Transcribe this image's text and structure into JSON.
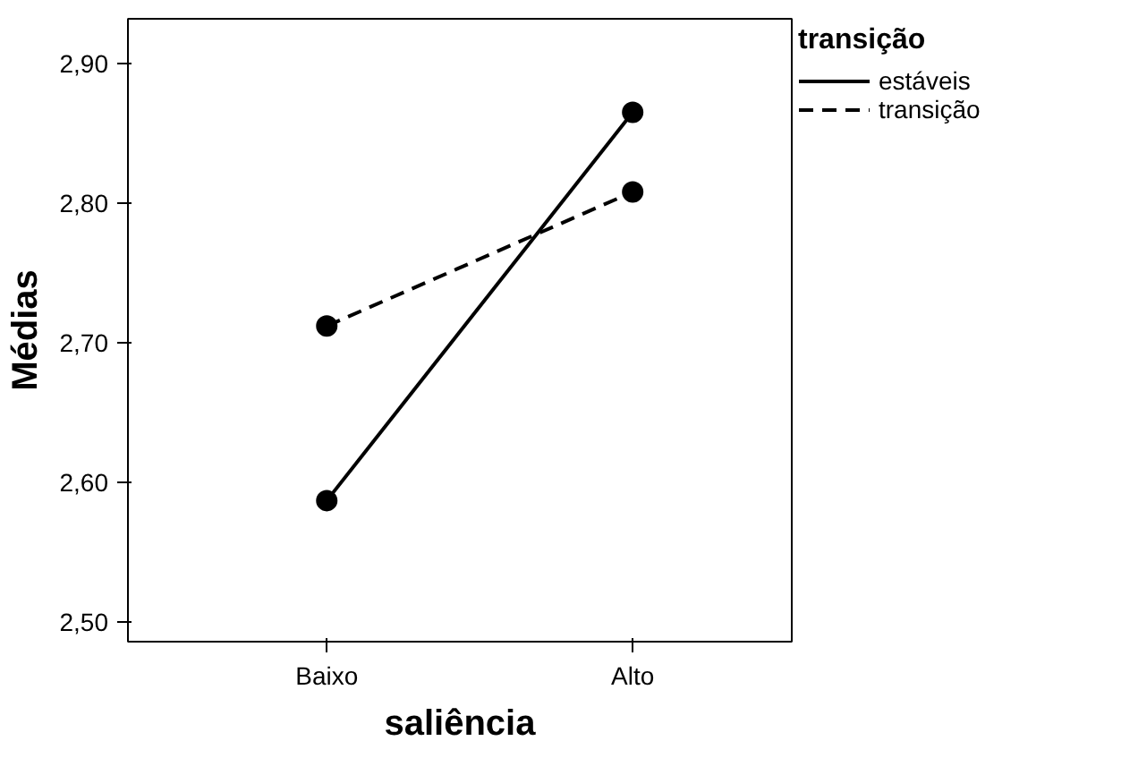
{
  "chart_data": {
    "type": "line",
    "xlabel": "saliência",
    "ylabel": "Médias",
    "legend_title": "transição",
    "categories": [
      "Baixo",
      "Alto"
    ],
    "series": [
      {
        "name": "estáveis",
        "color": "#000000",
        "values": [
          2.587,
          2.865
        ],
        "line_style": "solid"
      },
      {
        "name": "transição",
        "color": "#000000",
        "values": [
          2.712,
          2.808
        ],
        "line_style": "dashed"
      }
    ],
    "ylim": [
      2.486,
      2.932
    ],
    "yticks": [
      {
        "value": 2.5,
        "label": "2,50"
      },
      {
        "value": 2.6,
        "label": "2,60"
      },
      {
        "value": 2.7,
        "label": "2,70"
      },
      {
        "value": 2.8,
        "label": "2,80"
      },
      {
        "value": 2.9,
        "label": "2,90"
      }
    ],
    "marker": "circle",
    "legend": "top right",
    "grid": false
  }
}
